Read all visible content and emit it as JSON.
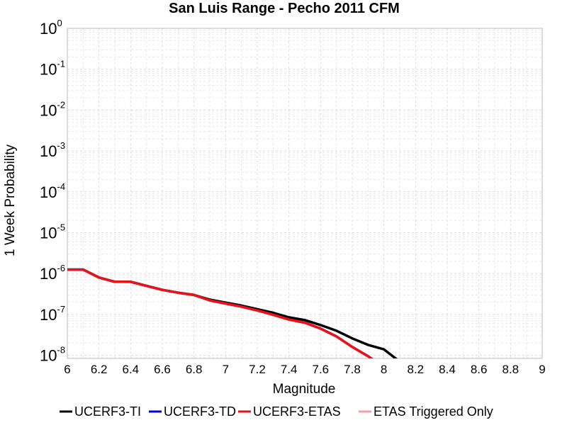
{
  "chart_data": {
    "type": "line",
    "title": "San Luis Range - Pecho 2011 CFM",
    "xlabel": "Magnitude",
    "ylabel": "1 Week Probability",
    "xlim": [
      6,
      9
    ],
    "ylim": [
      7e-09,
      1
    ],
    "y_scale": "log",
    "grid": true,
    "legend_position": "bottom",
    "x_ticks": [
      "6",
      "6.2",
      "6.4",
      "6.6",
      "6.8",
      "7",
      "7.2",
      "7.4",
      "7.6",
      "7.8",
      "8",
      "8.2",
      "8.4",
      "8.6",
      "8.8",
      "9"
    ],
    "y_ticks": [
      {
        "base": "10",
        "exp": "0"
      },
      {
        "base": "10",
        "exp": "-1"
      },
      {
        "base": "10",
        "exp": "-2"
      },
      {
        "base": "10",
        "exp": "-3"
      },
      {
        "base": "10",
        "exp": "-4"
      },
      {
        "base": "10",
        "exp": "-5"
      },
      {
        "base": "10",
        "exp": "-6"
      },
      {
        "base": "10",
        "exp": "-7"
      },
      {
        "base": "10",
        "exp": "-8"
      }
    ],
    "series": [
      {
        "name": "UCERF3-TI",
        "color": "#000000",
        "x": [
          6.0,
          6.1,
          6.2,
          6.3,
          6.4,
          6.5,
          6.6,
          6.7,
          6.8,
          6.9,
          7.0,
          7.1,
          7.2,
          7.3,
          7.4,
          7.5,
          7.6,
          7.7,
          7.8,
          7.9,
          8.0,
          8.1
        ],
        "y": [
          1.25e-06,
          1.25e-06,
          8e-07,
          6.3e-07,
          6.3e-07,
          5e-07,
          4e-07,
          3.4e-07,
          3e-07,
          2.3e-07,
          1.95e-07,
          1.65e-07,
          1.35e-07,
          1.1e-07,
          8.5e-08,
          7.3e-08,
          5.5e-08,
          4e-08,
          2.6e-08,
          1.8e-08,
          1.4e-08,
          7e-09
        ]
      },
      {
        "name": "UCERF3-TD",
        "color": "#0000ee",
        "x": [
          6.0,
          6.1,
          6.2,
          6.3,
          6.4,
          6.5,
          6.6,
          6.7,
          6.8,
          6.9,
          7.0,
          7.1,
          7.2,
          7.3,
          7.4,
          7.5,
          7.6,
          7.7,
          7.8,
          7.9,
          7.95
        ],
        "y": [
          1.25e-06,
          1.25e-06,
          8e-07,
          6.3e-07,
          6.3e-07,
          5e-07,
          4e-07,
          3.4e-07,
          3e-07,
          2.2e-07,
          1.85e-07,
          1.55e-07,
          1.25e-07,
          9.8e-08,
          7.5e-08,
          6.3e-08,
          4.5e-08,
          2.9e-08,
          1.6e-08,
          9.5e-09,
          7e-09
        ]
      },
      {
        "name": "UCERF3-ETAS",
        "color": "#ee1111",
        "x": [
          6.0,
          6.1,
          6.2,
          6.3,
          6.4,
          6.5,
          6.6,
          6.7,
          6.8,
          6.9,
          7.0,
          7.1,
          7.2,
          7.3,
          7.4,
          7.5,
          7.6,
          7.7,
          7.8,
          7.9,
          7.95
        ],
        "y": [
          1.25e-06,
          1.25e-06,
          8e-07,
          6.3e-07,
          6.3e-07,
          5e-07,
          4e-07,
          3.4e-07,
          3e-07,
          2.2e-07,
          1.85e-07,
          1.55e-07,
          1.25e-07,
          9.8e-08,
          7.5e-08,
          6.3e-08,
          4.5e-08,
          2.9e-08,
          1.6e-08,
          9.5e-09,
          7e-09
        ]
      },
      {
        "name": "ETAS Triggered Only",
        "color": "#f4a0a0",
        "x": [],
        "y": []
      }
    ]
  }
}
